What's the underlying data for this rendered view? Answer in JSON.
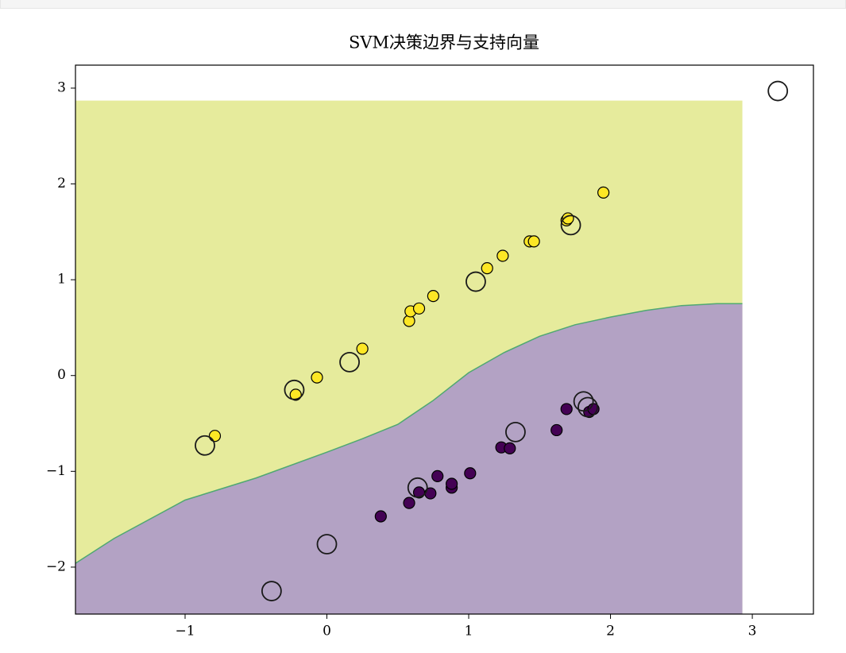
{
  "chart_data": {
    "type": "scatter",
    "title": "SVM决策边界与支持向量",
    "xlim": [
      -1.773,
      3.431
    ],
    "ylim": [
      -2.49,
      3.24
    ],
    "xticks": [
      {
        "value": -1,
        "label": "−1"
      },
      0,
      1,
      2,
      3
    ],
    "yticks": [
      {
        "value": -2,
        "label": "−2"
      },
      {
        "value": -1,
        "label": "−1"
      },
      0,
      1,
      2,
      3
    ],
    "region_xlim": [
      -1.773,
      2.93
    ],
    "region_ylim": [
      -2.49,
      2.87
    ],
    "region_colors": [
      "#b3a2c4",
      "#e6eb9c"
    ],
    "decision_boundary": {
      "color": "#4fa872",
      "x": [
        -1.773,
        -1.5,
        -1.0,
        -0.5,
        0.0,
        0.25,
        0.5,
        0.75,
        1.0,
        1.25,
        1.5,
        1.75,
        2.0,
        2.25,
        2.5,
        2.75,
        2.93
      ],
      "y": [
        -1.96,
        -1.7,
        -1.3,
        -1.07,
        -0.8,
        -0.66,
        -0.51,
        -0.26,
        0.03,
        0.24,
        0.41,
        0.53,
        0.61,
        0.68,
        0.73,
        0.75,
        0.75
      ]
    },
    "series": [
      {
        "color": "#fde725",
        "edgecolor": "#000000",
        "marker": "filled",
        "x": [
          -0.79,
          -0.22,
          -0.07,
          0.25,
          0.58,
          0.59,
          0.65,
          0.75,
          1.13,
          1.24,
          1.43,
          1.46,
          1.69,
          1.7,
          1.95
        ],
        "y": [
          -0.63,
          -0.2,
          -0.02,
          0.28,
          0.57,
          0.67,
          0.7,
          0.83,
          1.12,
          1.25,
          1.4,
          1.4,
          1.62,
          1.64,
          1.91
        ]
      },
      {
        "color": "#440154",
        "edgecolor": "#000000",
        "marker": "filled",
        "x": [
          0.38,
          0.58,
          0.65,
          0.73,
          0.78,
          0.88,
          0.88,
          1.01,
          1.23,
          1.29,
          1.62,
          1.69,
          1.85,
          1.88
        ],
        "y": [
          -1.47,
          -1.33,
          -1.22,
          -1.23,
          -1.05,
          -1.17,
          -1.13,
          -1.02,
          -0.75,
          -0.76,
          -0.57,
          -0.35,
          -0.38,
          -0.35
        ]
      },
      {
        "color": "none",
        "edgecolor": "#1a1a1a",
        "marker": "hollow",
        "x": [
          -0.86,
          -0.23,
          0.16,
          1.05,
          1.72,
          3.18,
          -0.39,
          0.0,
          0.64,
          1.33,
          1.81,
          1.84
        ],
        "y": [
          -0.73,
          -0.15,
          0.14,
          0.98,
          1.57,
          2.97,
          -2.25,
          -1.76,
          -1.17,
          -0.59,
          -0.27,
          -0.33
        ]
      }
    ]
  }
}
